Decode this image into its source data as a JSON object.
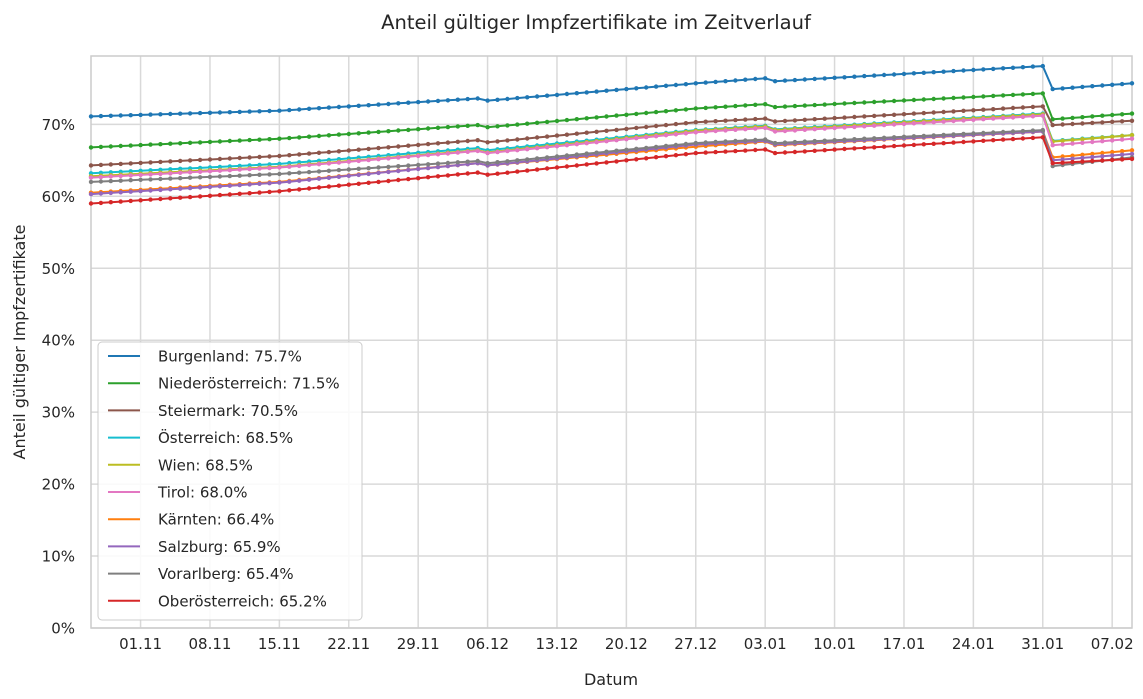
{
  "chart_data": {
    "type": "line",
    "title": "Anteil gültiger Impfzertifikate im Zeitverlauf",
    "xlabel": "Datum",
    "ylabel": "Anteil gültiger Impfzertifikate",
    "x_start": "2021-10-27",
    "x_end": "2022-02-09",
    "x_ticks": [
      "01.11",
      "08.11",
      "15.11",
      "22.11",
      "29.11",
      "06.12",
      "13.12",
      "20.12",
      "27.12",
      "03.01",
      "10.01",
      "17.01",
      "24.01",
      "31.01",
      "07.02"
    ],
    "x_tick_dates": [
      "2021-11-01",
      "2021-11-08",
      "2021-11-15",
      "2021-11-22",
      "2021-11-29",
      "2021-12-06",
      "2021-12-13",
      "2021-12-20",
      "2021-12-27",
      "2022-01-03",
      "2022-01-10",
      "2022-01-17",
      "2022-01-24",
      "2022-01-31",
      "2022-02-07"
    ],
    "y_ticks": [
      "0%",
      "10%",
      "20%",
      "30%",
      "40%",
      "50%",
      "60%",
      "70%"
    ],
    "ylim": [
      0,
      79.5
    ],
    "y_unit": "%",
    "grid": true,
    "legend_position": "lower-left",
    "series": [
      {
        "name": "Burgenland",
        "label": "Burgenland: 75.7%",
        "color": "#1f77b4",
        "points": [
          [
            "2021-10-27",
            71.1
          ],
          [
            "2021-11-15",
            71.9
          ],
          [
            "2021-12-05",
            73.6
          ],
          [
            "2021-12-06",
            73.3
          ],
          [
            "2021-12-27",
            75.7
          ],
          [
            "2022-01-03",
            76.4
          ],
          [
            "2022-01-04",
            76.0
          ],
          [
            "2022-01-31",
            78.1
          ],
          [
            "2022-02-01",
            74.9
          ],
          [
            "2022-02-09",
            75.7
          ]
        ]
      },
      {
        "name": "Niederösterreich",
        "label": "Niederösterreich: 71.5%",
        "color": "#2ca02c",
        "points": [
          [
            "2021-10-27",
            66.8
          ],
          [
            "2021-11-15",
            68.0
          ],
          [
            "2021-12-05",
            69.9
          ],
          [
            "2021-12-06",
            69.6
          ],
          [
            "2021-12-27",
            72.2
          ],
          [
            "2022-01-03",
            72.8
          ],
          [
            "2022-01-04",
            72.4
          ],
          [
            "2022-01-31",
            74.3
          ],
          [
            "2022-02-01",
            70.7
          ],
          [
            "2022-02-09",
            71.5
          ]
        ]
      },
      {
        "name": "Steiermark",
        "label": "Steiermark: 70.5%",
        "color": "#8c564b",
        "points": [
          [
            "2021-10-27",
            64.3
          ],
          [
            "2021-11-15",
            65.6
          ],
          [
            "2021-12-05",
            67.8
          ],
          [
            "2021-12-06",
            67.5
          ],
          [
            "2021-12-27",
            70.3
          ],
          [
            "2022-01-03",
            70.8
          ],
          [
            "2022-01-04",
            70.4
          ],
          [
            "2022-01-31",
            72.5
          ],
          [
            "2022-02-01",
            69.9
          ],
          [
            "2022-02-09",
            70.5
          ]
        ]
      },
      {
        "name": "Österreich",
        "label": "Österreich: 68.5%",
        "color": "#17becf",
        "points": [
          [
            "2021-10-27",
            63.2
          ],
          [
            "2021-11-15",
            64.5
          ],
          [
            "2021-12-05",
            66.7
          ],
          [
            "2021-12-06",
            66.4
          ],
          [
            "2021-12-27",
            69.2
          ],
          [
            "2022-01-03",
            69.8
          ],
          [
            "2022-01-04",
            69.3
          ],
          [
            "2022-01-31",
            71.5
          ],
          [
            "2022-02-01",
            67.7
          ],
          [
            "2022-02-09",
            68.5
          ]
        ]
      },
      {
        "name": "Wien",
        "label": "Wien: 68.5%",
        "color": "#bcbd22",
        "points": [
          [
            "2021-10-27",
            62.8
          ],
          [
            "2021-11-15",
            64.1
          ],
          [
            "2021-12-05",
            66.4
          ],
          [
            "2021-12-06",
            66.1
          ],
          [
            "2021-12-27",
            69.1
          ],
          [
            "2022-01-03",
            69.7
          ],
          [
            "2022-01-04",
            69.2
          ],
          [
            "2022-01-31",
            71.4
          ],
          [
            "2022-02-01",
            67.6
          ],
          [
            "2022-02-09",
            68.5
          ]
        ]
      },
      {
        "name": "Tirol",
        "label": "Tirol: 68.0%",
        "color": "#e377c2",
        "points": [
          [
            "2021-10-27",
            62.6
          ],
          [
            "2021-11-15",
            64.0
          ],
          [
            "2021-12-05",
            66.3
          ],
          [
            "2021-12-06",
            66.0
          ],
          [
            "2021-12-27",
            68.9
          ],
          [
            "2022-01-03",
            69.5
          ],
          [
            "2022-01-04",
            69.0
          ],
          [
            "2022-01-31",
            71.2
          ],
          [
            "2022-02-01",
            67.1
          ],
          [
            "2022-02-09",
            68.0
          ]
        ]
      },
      {
        "name": "Kärnten",
        "label": "Kärnten: 66.4%",
        "color": "#ff7f0e",
        "points": [
          [
            "2021-10-27",
            60.5
          ],
          [
            "2021-11-15",
            62.0
          ],
          [
            "2021-12-05",
            64.6
          ],
          [
            "2021-12-06",
            64.3
          ],
          [
            "2021-12-27",
            66.9
          ],
          [
            "2022-01-03",
            67.6
          ],
          [
            "2022-01-04",
            67.1
          ],
          [
            "2022-01-31",
            69.0
          ],
          [
            "2022-02-01",
            65.4
          ],
          [
            "2022-02-09",
            66.4
          ]
        ]
      },
      {
        "name": "Salzburg",
        "label": "Salzburg: 65.9%",
        "color": "#9467bd",
        "points": [
          [
            "2021-10-27",
            60.3
          ],
          [
            "2021-11-15",
            61.9
          ],
          [
            "2021-12-05",
            64.6
          ],
          [
            "2021-12-06",
            64.3
          ],
          [
            "2021-12-27",
            67.2
          ],
          [
            "2022-01-03",
            67.7
          ],
          [
            "2022-01-04",
            67.2
          ],
          [
            "2022-01-31",
            69.0
          ],
          [
            "2022-02-01",
            65.0
          ],
          [
            "2022-02-09",
            65.9
          ]
        ]
      },
      {
        "name": "Vorarlberg",
        "label": "Vorarlberg: 65.4%",
        "color": "#7f7f7f",
        "points": [
          [
            "2021-10-27",
            62.0
          ],
          [
            "2021-11-15",
            63.1
          ],
          [
            "2021-12-05",
            64.9
          ],
          [
            "2021-12-06",
            64.6
          ],
          [
            "2021-12-27",
            67.4
          ],
          [
            "2022-01-03",
            67.9
          ],
          [
            "2022-01-04",
            67.4
          ],
          [
            "2022-01-31",
            69.2
          ],
          [
            "2022-02-01",
            64.2
          ],
          [
            "2022-02-09",
            65.4
          ]
        ]
      },
      {
        "name": "Oberösterreich",
        "label": "Oberösterreich: 65.2%",
        "color": "#d62728",
        "points": [
          [
            "2021-10-27",
            59.0
          ],
          [
            "2021-11-15",
            60.7
          ],
          [
            "2021-12-05",
            63.3
          ],
          [
            "2021-12-06",
            63.0
          ],
          [
            "2021-12-27",
            66.0
          ],
          [
            "2022-01-03",
            66.5
          ],
          [
            "2022-01-04",
            66.0
          ],
          [
            "2022-01-31",
            68.2
          ],
          [
            "2022-02-01",
            64.6
          ],
          [
            "2022-02-09",
            65.2
          ]
        ]
      }
    ]
  }
}
